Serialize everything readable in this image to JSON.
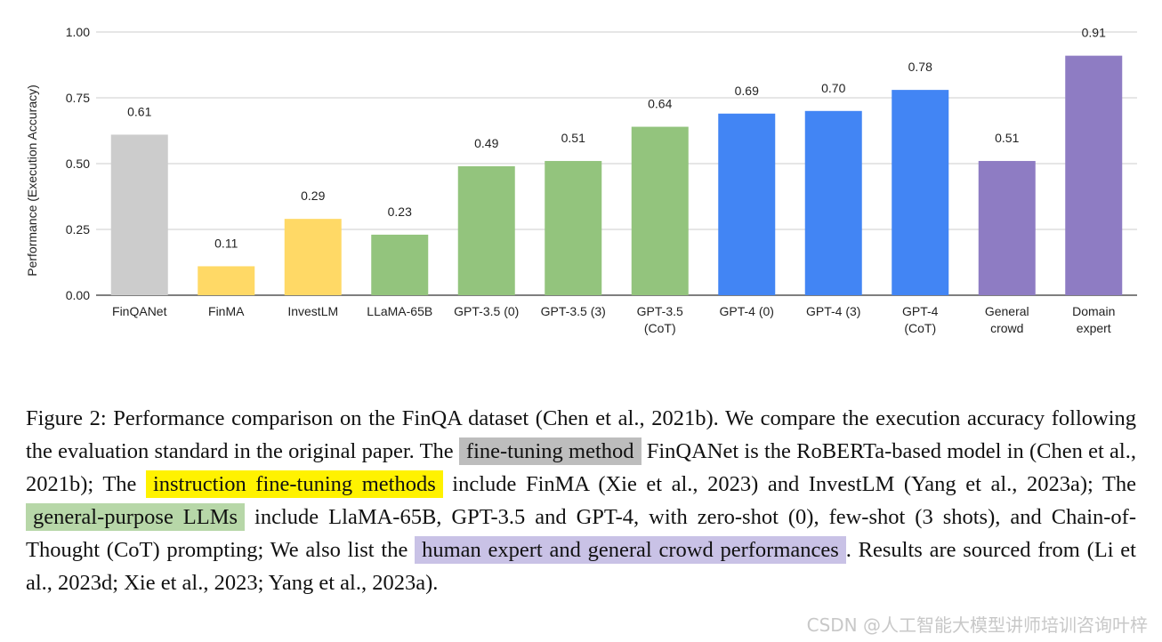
{
  "chart_data": {
    "type": "bar",
    "ylabel": "Performance (Execution Accuracy)",
    "ylim": [
      0,
      1.0
    ],
    "yticks": [
      "0.00",
      "0.25",
      "0.50",
      "0.75",
      "1.00"
    ],
    "grid": true,
    "categories": [
      [
        "FinQANet"
      ],
      [
        "FinMA"
      ],
      [
        "InvestLM"
      ],
      [
        "LLaMA-65B"
      ],
      [
        "GPT-3.5 (0)"
      ],
      [
        "GPT-3.5 (3)"
      ],
      [
        "GPT-3.5",
        "(CoT)"
      ],
      [
        "GPT-4 (0)"
      ],
      [
        "GPT-4 (3)"
      ],
      [
        "GPT-4",
        "(CoT)"
      ],
      [
        "General",
        "crowd"
      ],
      [
        "Domain",
        "expert"
      ]
    ],
    "values": [
      0.61,
      0.11,
      0.29,
      0.23,
      0.49,
      0.51,
      0.64,
      0.69,
      0.7,
      0.78,
      0.51,
      0.91
    ],
    "value_labels": [
      "0.61",
      "0.11",
      "0.29",
      "0.23",
      "0.49",
      "0.51",
      "0.64",
      "0.69",
      "0.70",
      "0.78",
      "0.51",
      "0.91"
    ],
    "colors": [
      "#cccccc",
      "#ffd966",
      "#ffd966",
      "#93c47d",
      "#93c47d",
      "#93c47d",
      "#93c47d",
      "#4285f4",
      "#4285f4",
      "#4285f4",
      "#8e7cc3",
      "#8e7cc3"
    ]
  },
  "caption": {
    "p1": "Figure 2: Performance comparison on the FinQA dataset (Chen et al., 2021b). We compare the execution accuracy following the evaluation standard in the original paper. The ",
    "h1": "fine-tuning method",
    "p2": " FinQANet is the RoBERTa-based model in (Chen et al., 2021b); The ",
    "h2": "instruction fine-tuning methods",
    "p3": " include FinMA (Xie et al., 2023) and InvestLM (Yang et al., 2023a); The ",
    "h3": "general-purpose LLMs",
    "p4": " include LlaMA-65B, GPT-3.5 and GPT-4, with zero-shot (0), few-shot (3 shots), and Chain-of-Thought (CoT) prompting; We also list the ",
    "h4": "human expert and general crowd performances",
    "p5": ". Results are sourced from (Li et al., 2023d; Xie et al., 2023; Yang et al., 2023a)."
  },
  "watermark": "CSDN @人工智能大模型讲师培训咨询叶梓"
}
